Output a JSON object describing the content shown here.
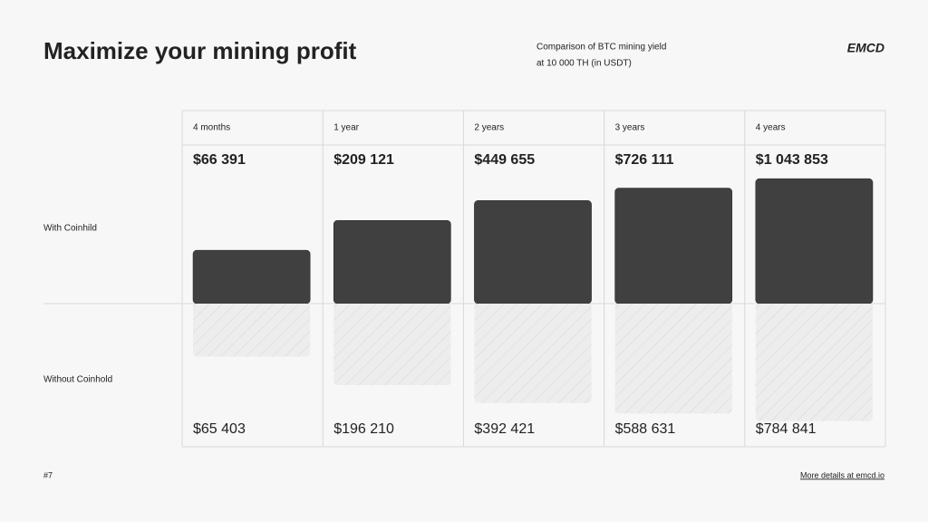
{
  "chart_data": {
    "type": "bar",
    "title": "Maximize your mining profit",
    "subtitle": [
      "Comparison of BTC mining yield",
      "at 10 000 TH (in USDT)"
    ],
    "categories": [
      "4 months",
      "1 year",
      "2 years",
      "3 years",
      "4 years"
    ],
    "series": [
      {
        "name": "With Coinhild",
        "color": "#404040",
        "direction": "up",
        "hatched": false,
        "values": [
          66391,
          209121,
          449655,
          726111,
          1043853
        ],
        "value_labels": [
          "$66 391",
          "$209 121",
          "$449 655",
          "$726 111",
          "$1 043 853"
        ]
      },
      {
        "name": "Without Coinhold",
        "color": "#ededed",
        "direction": "down",
        "hatched": true,
        "values": [
          65403,
          196210,
          392421,
          588631,
          784841
        ],
        "value_labels": [
          "$65 403",
          "$196 210",
          "$392 421",
          "$588 631",
          "$784 841"
        ]
      }
    ]
  },
  "brand": "EMCD",
  "page_number": "#7",
  "footer_link": "More details at emcd.io"
}
